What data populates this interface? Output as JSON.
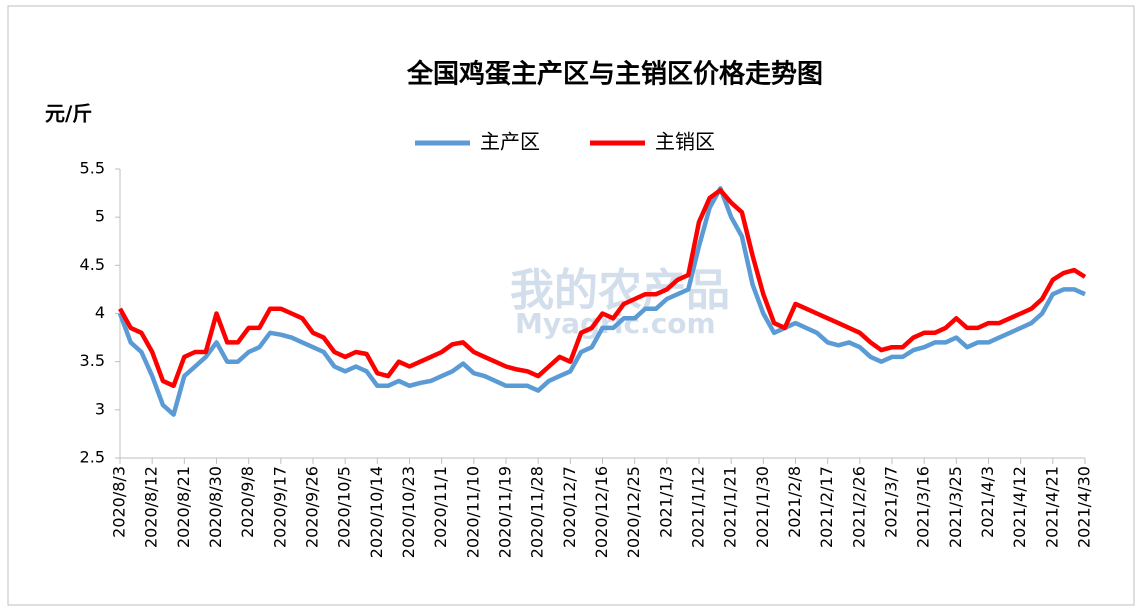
{
  "chart_data": {
    "type": "line",
    "title": "全国鸡蛋主产区与主销区价格走势图",
    "y_label": "元/斤",
    "watermark": "我的农产品",
    "watermark_sub": "Myagric.com",
    "categories": [
      "2020/8/3",
      null,
      null,
      "2020/8/12",
      null,
      null,
      "2020/8/21",
      null,
      null,
      "2020/8/30",
      null,
      null,
      "2020/9/8",
      null,
      null,
      "2020/9/17",
      null,
      null,
      "2020/9/26",
      null,
      null,
      "2020/10/5",
      null,
      null,
      "2020/10/14",
      null,
      null,
      "2020/10/23",
      null,
      null,
      "2020/11/1",
      null,
      null,
      "2020/11/10",
      null,
      null,
      "2020/11/19",
      null,
      null,
      "2020/11/28",
      null,
      null,
      "2020/12/7",
      null,
      null,
      "2020/12/16",
      null,
      null,
      "2020/12/25",
      null,
      null,
      "2021/1/3",
      null,
      null,
      "2021/1/12",
      null,
      null,
      "2021/1/21",
      null,
      null,
      "2021/1/30",
      null,
      null,
      "2021/2/8",
      null,
      null,
      "2021/2/17",
      null,
      null,
      "2021/2/26",
      null,
      null,
      "2021/3/7",
      null,
      null,
      "2021/3/16",
      null,
      null,
      "2021/3/25",
      null,
      null,
      "2021/4/3",
      null,
      null,
      "2021/4/12",
      null,
      null,
      "2021/4/21",
      null,
      null,
      "2021/4/30"
    ],
    "series": [
      {
        "name": "主产区",
        "color": "#5b9bd5",
        "values": [
          4.0,
          3.7,
          3.6,
          3.35,
          3.05,
          2.95,
          3.35,
          3.45,
          3.55,
          3.7,
          3.5,
          3.5,
          3.6,
          3.65,
          3.8,
          3.78,
          3.75,
          3.7,
          3.65,
          3.6,
          3.45,
          3.4,
          3.45,
          3.4,
          3.25,
          3.25,
          3.3,
          3.25,
          3.28,
          3.3,
          3.35,
          3.4,
          3.48,
          3.38,
          3.35,
          3.3,
          3.25,
          3.25,
          3.25,
          3.2,
          3.3,
          3.35,
          3.4,
          3.6,
          3.65,
          3.85,
          3.85,
          3.95,
          3.95,
          4.05,
          4.05,
          4.15,
          4.2,
          4.25,
          4.7,
          5.1,
          5.3,
          5.0,
          4.8,
          4.3,
          4.0,
          3.8,
          3.85,
          3.9,
          3.85,
          3.8,
          3.7,
          3.67,
          3.7,
          3.65,
          3.55,
          3.5,
          3.55,
          3.55,
          3.62,
          3.65,
          3.7,
          3.7,
          3.75,
          3.65,
          3.7,
          3.7,
          3.75,
          3.8,
          3.85,
          3.9,
          4.0,
          4.2,
          4.25,
          4.25,
          4.2
        ]
      },
      {
        "name": "主销区",
        "color": "#ff0000",
        "values": [
          4.05,
          3.85,
          3.8,
          3.6,
          3.3,
          3.25,
          3.55,
          3.6,
          3.6,
          4.0,
          3.7,
          3.7,
          3.85,
          3.85,
          4.05,
          4.05,
          4.0,
          3.95,
          3.8,
          3.75,
          3.6,
          3.55,
          3.6,
          3.58,
          3.38,
          3.35,
          3.5,
          3.45,
          3.5,
          3.55,
          3.6,
          3.68,
          3.7,
          3.6,
          3.55,
          3.5,
          3.45,
          3.42,
          3.4,
          3.35,
          3.45,
          3.55,
          3.5,
          3.8,
          3.85,
          4.0,
          3.95,
          4.1,
          4.15,
          4.2,
          4.2,
          4.25,
          4.35,
          4.4,
          4.95,
          5.2,
          5.28,
          5.15,
          5.05,
          4.6,
          4.2,
          3.9,
          3.85,
          4.1,
          4.05,
          4.0,
          3.95,
          3.9,
          3.85,
          3.8,
          3.7,
          3.62,
          3.65,
          3.65,
          3.75,
          3.8,
          3.8,
          3.85,
          3.95,
          3.85,
          3.85,
          3.9,
          3.9,
          3.95,
          4.0,
          4.05,
          4.15,
          4.35,
          4.42,
          4.45,
          4.38
        ]
      }
    ],
    "ylim": [
      2.5,
      5.5
    ],
    "yticks": [
      2.5,
      3,
      3.5,
      4,
      4.5,
      5,
      5.5
    ]
  }
}
